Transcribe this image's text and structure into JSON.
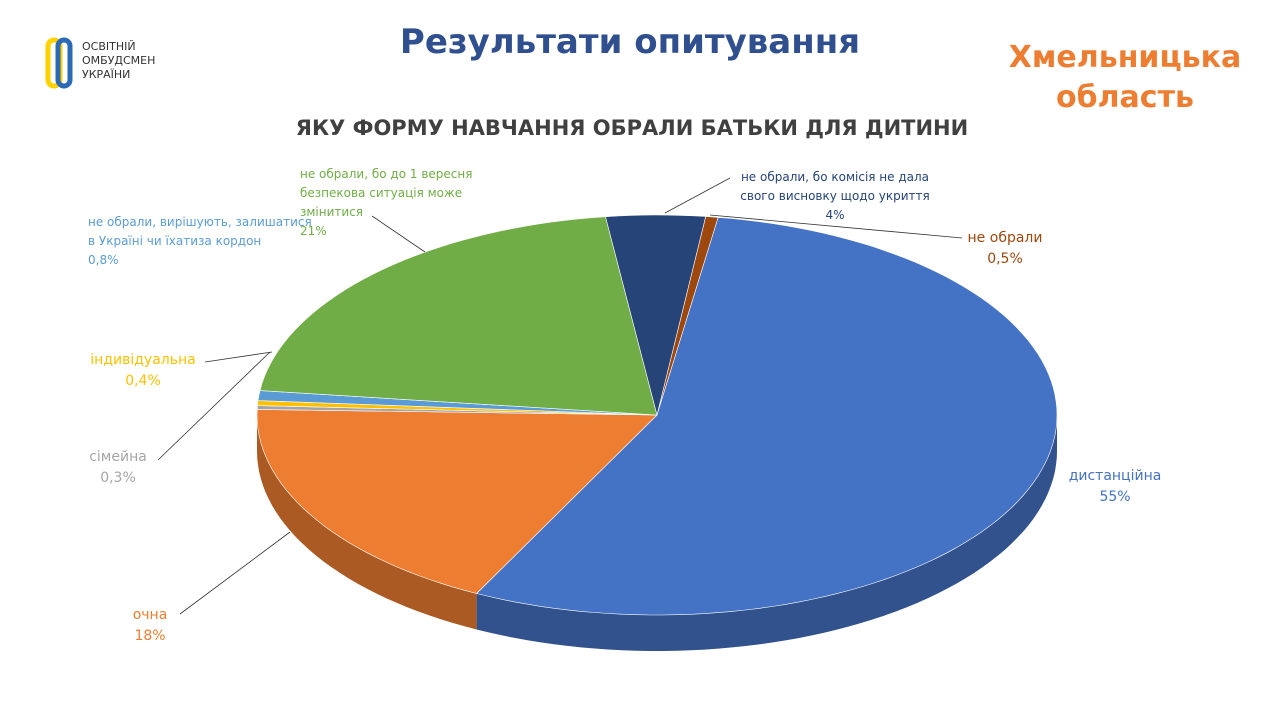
{
  "header": {
    "title": "Результати опитування",
    "region": "Хмельницька область",
    "logo": "ОСВІТНІЙ ОМБУДСМЕН УКРАЇНИ"
  },
  "chart_data": {
    "type": "pie",
    "title": "ЯКУ ФОРМУ НАВЧАННЯ ОБРАЛИ БАТЬКИ ДЛЯ ДИТИНИ",
    "categories": [
      "не обрали",
      "дистанційна",
      "очна",
      "сімейна",
      "індивідуальна",
      "не обрали, вирішують, залишатися в Україні чи їхатиза кордон",
      "не обрали, бо до 1 вересня безпекова ситуація може змінитися",
      "не обрали, бо комісія  не дала свого висновку  щодо укриття"
    ],
    "values": [
      0.5,
      55,
      18,
      0.3,
      0.4,
      0.8,
      21,
      4
    ],
    "value_labels": [
      "0,5%",
      "55%",
      "18%",
      "0,3%",
      "0,4%",
      "0,8%",
      "21%",
      "4%"
    ],
    "colors": [
      "#9e480e",
      "#4472c4",
      "#ed7d31",
      "#a5a5a5",
      "#ffc000",
      "#5b9bd5",
      "#70ad47",
      "#264478"
    ]
  }
}
